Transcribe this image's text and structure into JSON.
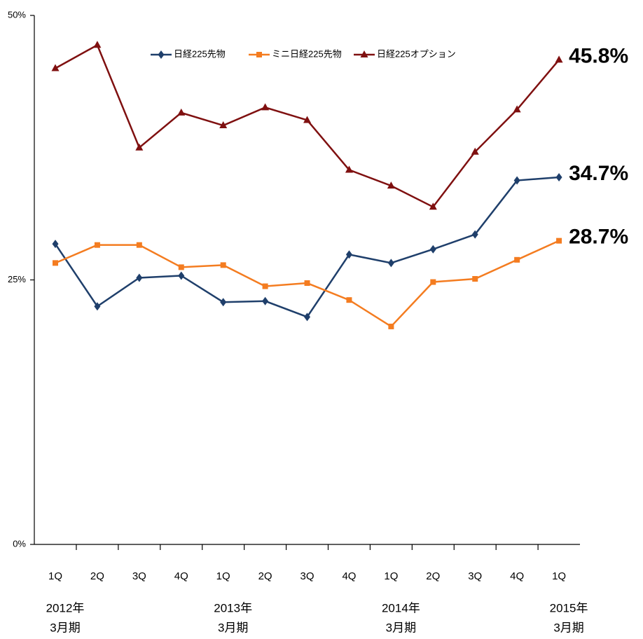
{
  "chart_data": {
    "type": "line",
    "categories": [
      "1Q",
      "2Q",
      "3Q",
      "4Q",
      "1Q",
      "2Q",
      "3Q",
      "4Q",
      "1Q",
      "2Q",
      "3Q",
      "4Q",
      "1Q"
    ],
    "group_labels": [
      [
        "2012年",
        "3月期"
      ],
      null,
      null,
      null,
      [
        "2013年",
        "3月期"
      ],
      null,
      null,
      null,
      [
        "2014年",
        "3月期"
      ],
      null,
      null,
      null,
      [
        "2015年",
        "3月期"
      ]
    ],
    "ylim": [
      0,
      50
    ],
    "yticks": [
      {
        "value": 0,
        "label": "0%"
      },
      {
        "value": 25,
        "label": "25%"
      },
      {
        "value": 50,
        "label": "50%"
      }
    ],
    "series": [
      {
        "name": "日経225先物",
        "color": "#1f3f6b",
        "marker": "diamond",
        "values": [
          28.4,
          22.5,
          25.2,
          25.4,
          22.9,
          23.0,
          21.5,
          27.4,
          26.6,
          27.9,
          29.3,
          34.4,
          34.7
        ],
        "value_labels": [
          null,
          null,
          null,
          null,
          null,
          null,
          null,
          null,
          null,
          null,
          null,
          null,
          "34.7%"
        ]
      },
      {
        "name": "ミニ日経225先物",
        "color": "#f47c20",
        "marker": "square",
        "values": [
          26.6,
          28.3,
          28.3,
          26.2,
          26.4,
          24.4,
          24.7,
          23.1,
          20.6,
          24.8,
          25.1,
          26.9,
          28.7
        ],
        "value_labels": [
          null,
          null,
          null,
          null,
          null,
          null,
          null,
          null,
          null,
          null,
          null,
          null,
          "28.7%"
        ]
      },
      {
        "name": "日経225オプション",
        "color": "#7f1010",
        "marker": "triangle",
        "values": [
          45.0,
          47.2,
          37.5,
          40.8,
          39.6,
          41.3,
          40.1,
          35.4,
          33.9,
          31.9,
          37.1,
          41.1,
          45.8
        ],
        "value_labels": [
          null,
          null,
          null,
          null,
          null,
          null,
          null,
          null,
          null,
          null,
          null,
          null,
          "45.8%"
        ]
      }
    ]
  }
}
